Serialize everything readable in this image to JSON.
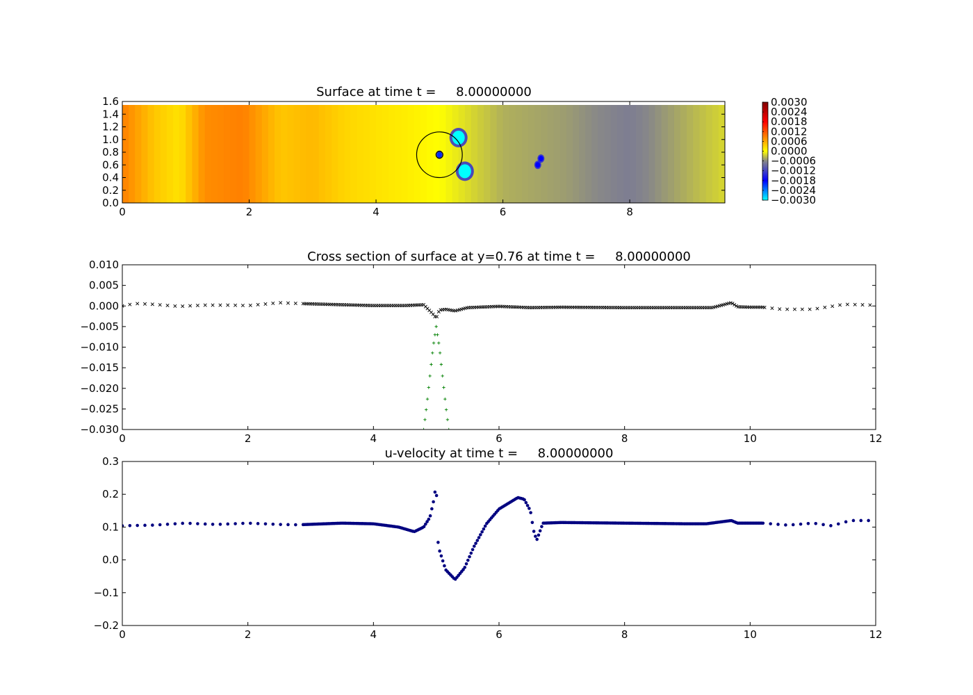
{
  "chart_data": [
    {
      "type": "heatmap",
      "title": "Surface at time t =     8.00000000",
      "xlim": [
        0,
        9.5
      ],
      "ylim": [
        0,
        1.6
      ],
      "x_ticks": [
        "0",
        "2",
        "4",
        "6",
        "8"
      ],
      "x_tick_values": [
        0,
        2,
        4,
        6,
        8
      ],
      "y_ticks": [
        "0.0",
        "0.2",
        "0.4",
        "0.6",
        "0.8",
        "1.0",
        "1.2",
        "1.4",
        "1.6"
      ],
      "y_tick_values": [
        0,
        0.2,
        0.4,
        0.6,
        0.8,
        1.0,
        1.2,
        1.4,
        1.6
      ],
      "colorbar": {
        "range": [
          -0.003,
          0.003
        ],
        "labels": [
          "0.0030",
          "0.0024",
          "0.0018",
          "0.0012",
          "0.0006",
          "0.0000",
          "−0.0006",
          "−0.0012",
          "−0.0018",
          "−0.0024",
          "−0.0030"
        ],
        "stops": [
          "#00ffff",
          "#0000ff",
          "#888888",
          "#ffff00",
          "#ff0000",
          "#800000"
        ]
      },
      "colormap_values": {
        "background_x": [
          0,
          0.5,
          0.9,
          1.3,
          1.9,
          2.5,
          3.0,
          3.5,
          4.0,
          4.6,
          5.0,
          6.0,
          7.0,
          8.0,
          9.5
        ],
        "background_value": [
          0.0009,
          0.0004,
          0.0002,
          0.0008,
          0.0009,
          0.0004,
          0.0005,
          0.0003,
          0.0002,
          0.0001,
          0.0,
          -0.0004,
          -0.0005,
          -0.0007,
          -0.0002
        ],
        "features": [
          {
            "x": 5.3,
            "y": 1.03,
            "value": -0.003
          },
          {
            "x": 5.4,
            "y": 0.5,
            "value": -0.003
          },
          {
            "x": 5.0,
            "y": 0.76,
            "value": -0.002
          },
          {
            "x": 6.6,
            "y": 0.7,
            "value": -0.0018
          },
          {
            "x": 6.55,
            "y": 0.6,
            "value": -0.0018
          }
        ]
      },
      "overlay_circle": {
        "center": [
          5.0,
          0.76
        ],
        "radius": 0.36
      }
    },
    {
      "type": "scatter",
      "title": "Cross section of surface at y=0.76 at time t =     8.00000000",
      "xlim": [
        0,
        12
      ],
      "ylim": [
        -0.03,
        0.01
      ],
      "x_ticks": [
        "0",
        "2",
        "4",
        "6",
        "8",
        "10",
        "12"
      ],
      "x_tick_values": [
        0,
        2,
        4,
        6,
        8,
        10,
        12
      ],
      "y_ticks": [
        "0.010",
        "0.005",
        "0.000",
        "−0.005",
        "−0.010",
        "−0.015",
        "−0.020",
        "−0.025",
        "−0.030"
      ],
      "y_tick_values": [
        0.01,
        0.005,
        0.0,
        -0.005,
        -0.01,
        -0.015,
        -0.02,
        -0.025,
        -0.03
      ],
      "series": [
        {
          "marker": "x",
          "color": "#000000",
          "x": [
            0,
            0.2,
            0.5,
            0.9,
            1.3,
            1.7,
            2.0,
            2.3,
            2.5,
            2.8,
            3.5,
            4.0,
            4.5,
            4.8,
            4.95,
            5.0,
            5.05,
            5.15,
            5.3,
            5.5,
            6.0,
            6.5,
            7.0,
            8.0,
            9.0,
            9.4,
            9.6,
            9.7,
            9.8,
            10.0,
            10.2,
            10.5,
            11.0,
            11.5,
            12.0
          ],
          "y": [
            0.0,
            0.0006,
            0.0004,
            -0.0001,
            0.0002,
            0.0002,
            0.0001,
            0.0005,
            0.0008,
            0.0006,
            0.0003,
            0.0001,
            0.0001,
            0.0003,
            -0.002,
            -0.003,
            -0.001,
            -0.0008,
            -0.0012,
            -0.0004,
            -0.0001,
            -0.0004,
            -0.0003,
            -0.0004,
            -0.0004,
            -0.0004,
            0.0004,
            0.0008,
            -0.0002,
            -0.0003,
            -0.0003,
            -0.0008,
            -0.0008,
            0.0004,
            0.0002
          ]
        },
        {
          "marker": "+",
          "color": "#008000",
          "x": [
            4.8,
            4.85,
            4.9,
            4.95,
            5.0,
            5.05,
            5.1,
            5.15,
            5.2
          ],
          "y": [
            -0.03,
            -0.024,
            -0.017,
            -0.01,
            -0.005,
            -0.01,
            -0.017,
            -0.024,
            -0.03
          ]
        }
      ]
    },
    {
      "type": "scatter",
      "title": "u-velocity at time t =     8.00000000",
      "xlim": [
        0,
        12
      ],
      "ylim": [
        -0.2,
        0.3
      ],
      "x_ticks": [
        "0",
        "2",
        "4",
        "6",
        "8",
        "10",
        "12"
      ],
      "x_tick_values": [
        0,
        2,
        4,
        6,
        8,
        10,
        12
      ],
      "y_ticks": [
        "0.3",
        "0.2",
        "0.1",
        "0.0",
        "−0.1",
        "−0.2"
      ],
      "y_tick_values": [
        0.3,
        0.2,
        0.1,
        0.0,
        -0.1,
        -0.2
      ],
      "series": [
        {
          "marker": "o",
          "color": "#000080",
          "x": [
            0,
            0.5,
            1.0,
            1.5,
            2.0,
            2.5,
            2.8,
            3.5,
            4.0,
            4.4,
            4.65,
            4.8,
            4.9,
            4.97,
            5.0,
            5.02,
            5.05,
            5.15,
            5.3,
            5.45,
            5.6,
            5.8,
            6.0,
            6.3,
            6.4,
            6.5,
            6.55,
            6.6,
            6.7,
            7.0,
            8.0,
            9.0,
            9.3,
            9.7,
            9.8,
            10.0,
            10.2,
            10.6,
            11.0,
            11.3,
            11.6,
            12.0
          ],
          "y": [
            0.104,
            0.106,
            0.112,
            0.108,
            0.112,
            0.108,
            0.107,
            0.112,
            0.11,
            0.1,
            0.086,
            0.1,
            0.13,
            0.19,
            0.24,
            0.065,
            0.03,
            -0.03,
            -0.06,
            -0.025,
            0.04,
            0.11,
            0.155,
            0.19,
            0.185,
            0.15,
            0.09,
            0.06,
            0.112,
            0.114,
            0.112,
            0.11,
            0.11,
            0.12,
            0.112,
            0.112,
            0.112,
            0.106,
            0.112,
            0.104,
            0.12,
            0.12
          ]
        }
      ]
    }
  ]
}
